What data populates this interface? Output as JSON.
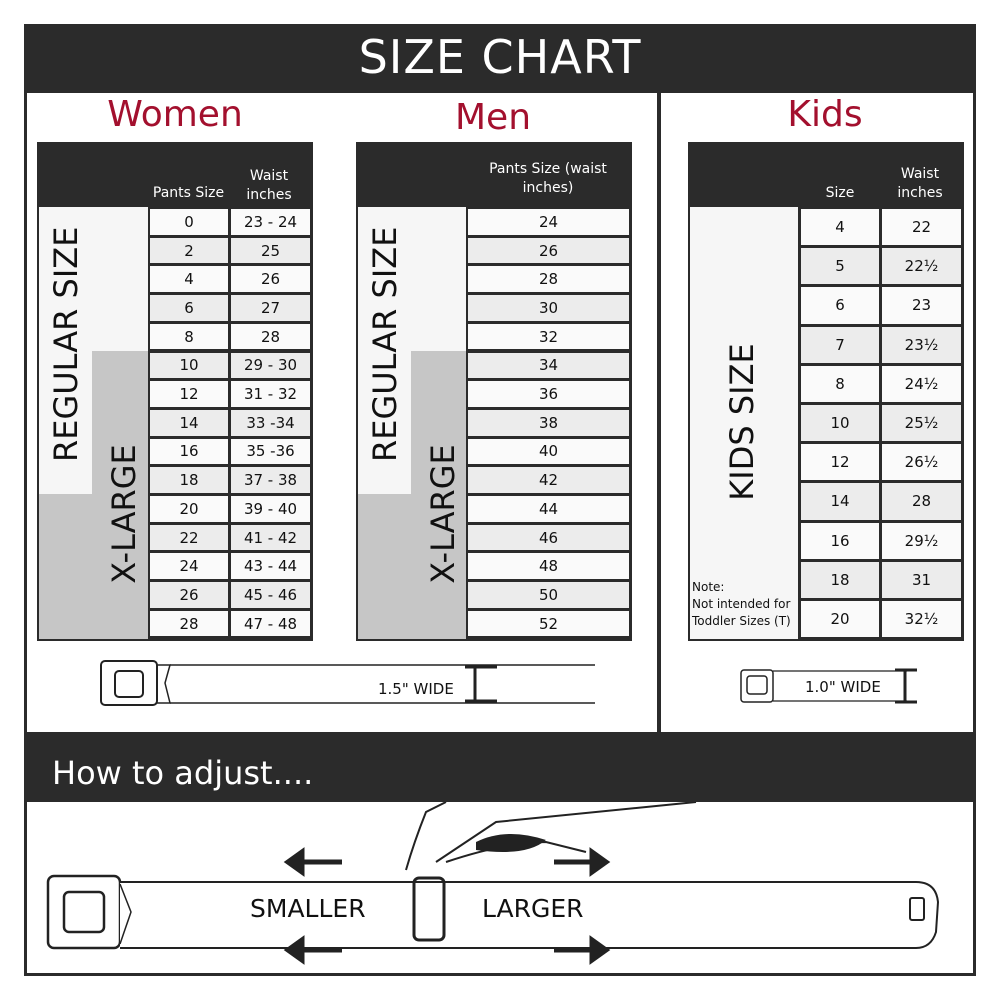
{
  "title": "SIZE CHART",
  "women": {
    "title": "Women",
    "col1": "Pants Size",
    "col2": "Waist inches",
    "regular_label": "REGULAR SIZE",
    "xlarge_label": "X-LARGE",
    "rows": [
      [
        "0",
        "23 - 24"
      ],
      [
        "2",
        "25"
      ],
      [
        "4",
        "26"
      ],
      [
        "6",
        "27"
      ],
      [
        "8",
        "28"
      ],
      [
        "10",
        "29 - 30"
      ],
      [
        "12",
        "31 - 32"
      ],
      [
        "14",
        "33 -34"
      ],
      [
        "16",
        "35 -36"
      ],
      [
        "18",
        "37 - 38"
      ],
      [
        "20",
        "39 - 40"
      ],
      [
        "22",
        "41 - 42"
      ],
      [
        "24",
        "43 - 44"
      ],
      [
        "26",
        "45 - 46"
      ],
      [
        "28",
        "47 - 48"
      ]
    ]
  },
  "men": {
    "title": "Men",
    "col1": "Pants Size (waist inches)",
    "regular_label": "REGULAR SIZE",
    "xlarge_label": "X-LARGE",
    "rows": [
      "24",
      "26",
      "28",
      "30",
      "32",
      "34",
      "36",
      "38",
      "40",
      "42",
      "44",
      "46",
      "48",
      "50",
      "52"
    ]
  },
  "kids": {
    "title": "Kids",
    "col1": "Size",
    "col2": "Waist inches",
    "label": "KIDS SIZE",
    "note_title": "Note:",
    "note_text": "Not intended for Toddler Sizes (T)",
    "rows": [
      [
        "4",
        "22"
      ],
      [
        "5",
        "22½"
      ],
      [
        "6",
        "23"
      ],
      [
        "7",
        "23½"
      ],
      [
        "8",
        "24½"
      ],
      [
        "10",
        "25½"
      ],
      [
        "12",
        "26½"
      ],
      [
        "14",
        "28"
      ],
      [
        "16",
        "29½"
      ],
      [
        "18",
        "31"
      ],
      [
        "20",
        "32½"
      ]
    ]
  },
  "adult_belt_width": "1.5\" WIDE",
  "kids_belt_width": "1.0\" WIDE",
  "adjust": {
    "title": "How to adjust....",
    "smaller": "SMALLER",
    "larger": "LARGER"
  },
  "colors": {
    "accent": "#a3102e",
    "dark": "#2b2b2b",
    "xlarge": "#c6c6c6"
  }
}
